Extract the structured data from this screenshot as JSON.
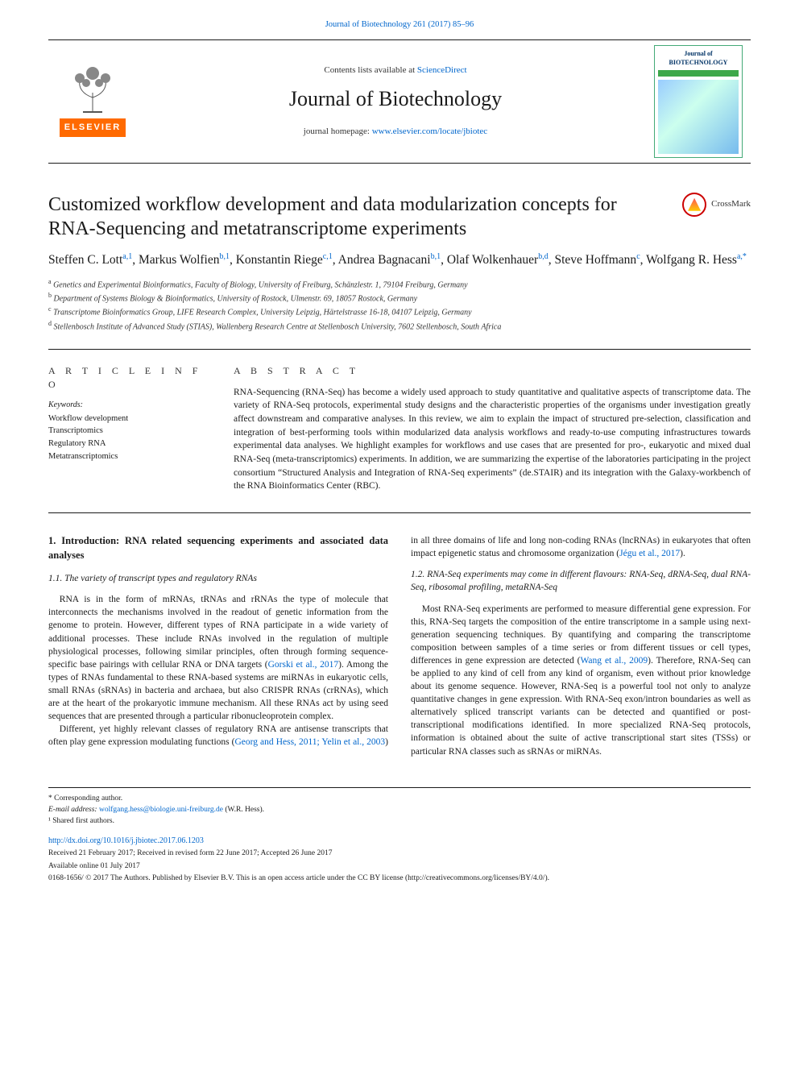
{
  "page": {
    "running_head": "Journal of Biotechnology 261 (2017) 85–96",
    "colors": {
      "link": "#0066cc",
      "elsevier_orange": "#ff6a00",
      "rule": "#1a1a1a",
      "text": "#1a1a1a",
      "cover_green": "#3da84a"
    },
    "font_body_pt": 11.5,
    "font_title_pt": 24
  },
  "masthead": {
    "contents_line_prefix": "Contents lists available at ",
    "contents_link_text": "ScienceDirect",
    "journal_name": "Journal of Biotechnology",
    "homepage_prefix": "journal homepage: ",
    "homepage_url_text": "www.elsevier.com/locate/jbiotec",
    "elsevier_label": "ELSEVIER",
    "cover_header": "Journal of\nBIOTECHNOLOGY"
  },
  "title": "Customized workflow development and data modularization concepts for RNA-Sequencing and metatranscriptome experiments",
  "crossmark_label": "CrossMark",
  "authors": [
    {
      "name": "Steffen C. Lott",
      "marks": "a,1"
    },
    {
      "name": "Markus Wolfien",
      "marks": "b,1"
    },
    {
      "name": "Konstantin Riege",
      "marks": "c,1"
    },
    {
      "name": "Andrea Bagnacani",
      "marks": "b,1"
    },
    {
      "name": "Olaf Wolkenhauer",
      "marks": "b,d"
    },
    {
      "name": "Steve Hoffmann",
      "marks": "c"
    },
    {
      "name": "Wolfgang R. Hess",
      "marks": "a,*"
    }
  ],
  "affiliations": [
    {
      "key": "a",
      "text": "Genetics and Experimental Bioinformatics, Faculty of Biology, University of Freiburg, Schänzlestr. 1, 79104 Freiburg, Germany"
    },
    {
      "key": "b",
      "text": "Department of Systems Biology & Bioinformatics, University of Rostock, Ulmenstr. 69, 18057 Rostock, Germany"
    },
    {
      "key": "c",
      "text": "Transcriptome Bioinformatics Group, LIFE Research Complex, University Leipzig, Härtelstrasse 16-18, 04107 Leipzig, Germany"
    },
    {
      "key": "d",
      "text": "Stellenbosch Institute of Advanced Study (STIAS), Wallenberg Research Centre at Stellenbosch University, 7602 Stellenbosch, South Africa"
    }
  ],
  "article_info_heading": "A R T I C L E  I N F O",
  "keywords_label": "Keywords:",
  "keywords": [
    "Workflow development",
    "Transcriptomics",
    "Regulatory RNA",
    "Metatranscriptomics"
  ],
  "abstract_heading": "A B S T R A C T",
  "abstract_text": "RNA-Sequencing (RNA-Seq) has become a widely used approach to study quantitative and qualitative aspects of transcriptome data. The variety of RNA-Seq protocols, experimental study designs and the characteristic properties of the organisms under investigation greatly affect downstream and comparative analyses. In this review, we aim to explain the impact of structured pre-selection, classification and integration of best-performing tools within modularized data analysis workflows and ready-to-use computing infrastructures towards experimental data analyses. We highlight examples for workflows and use cases that are presented for pro-, eukaryotic and mixed dual RNA-Seq (meta-transcriptomics) experiments. In addition, we are summarizing the expertise of the laboratories participating in the project consortium “Structured Analysis and Integration of RNA-Seq experiments” (de.STAIR) and its integration with the Galaxy-workbench of the RNA Bioinformatics Center (RBC).",
  "sections": {
    "intro_heading": "1. Introduction: RNA related sequencing experiments and associated data analyses",
    "s11_heading": "1.1. The variety of transcript types and regulatory RNAs",
    "s11_p1": "RNA is in the form of mRNAs, tRNAs and rRNAs the type of molecule that interconnects the mechanisms involved in the readout of genetic information from the genome to protein. However, different types of RNA participate in a wide variety of additional processes. These include RNAs involved in the regulation of multiple physiological processes, following similar principles, often through forming sequence-specific base pairings with cellular RNA or DNA targets (",
    "s11_p1_cite": "Gorski et al., 2017",
    "s11_p1_tail": "). Among the types of RNAs fundamental to these RNA-based systems are miRNAs in eukaryotic cells, small RNAs (sRNAs) in bacteria and archaea, but also CRISPR RNAs (crRNAs), which are at the heart of the prokaryotic immune mechanism. All these RNAs act by using seed sequences that are presented through a particular ribonucleoprotein complex.",
    "s11_p2_pre": "Different, yet highly relevant classes of regulatory RNA are antisense transcripts that often play gene expression modulating functions (",
    "s11_p2_cite": "Georg and Hess, 2011; Yelin et al., 2003",
    "s11_p2_mid": ") in all three domains of life and long non-coding RNAs (lncRNAs) in eukaryotes that often impact epigenetic status and chromosome organization (",
    "s11_p2_cite2": "Jégu et al., 2017",
    "s11_p2_tail": ").",
    "s12_heading": "1.2. RNA-Seq experiments may come in different flavours: RNA-Seq, dRNA-Seq, dual RNA-Seq, ribosomal profiling, metaRNA-Seq",
    "s12_p1": "Most RNA-Seq experiments are performed to measure differential gene expression. For this, RNA-Seq targets the composition of the entire transcriptome in a sample using next-generation sequencing techniques. By quantifying and comparing the transcriptome composition between samples of a time series or from different tissues or cell types, differences in gene expression are detected (",
    "s12_p1_cite": "Wang et al., 2009",
    "s12_p1_tail": "). Therefore, RNA-Seq can be applied to any kind of cell from any kind of organism, even without prior knowledge about its genome sequence. However, RNA-Seq is a powerful tool not only to analyze quantitative changes in gene expression. With RNA-Seq exon/intron boundaries as well as alternatively spliced transcript variants can be detected and quantified or post-transcriptional modifications identified. In more specialized RNA-Seq protocols, information is obtained about the suite of active transcriptional start sites (TSSs) or particular RNA classes such as sRNAs or miRNAs."
  },
  "footnotes": {
    "corresponding": "* Corresponding author.",
    "email_label": "E-mail address: ",
    "email": "wolfgang.hess@biologie.uni-freiburg.de",
    "email_who": " (W.R. Hess).",
    "shared": "¹ Shared first authors."
  },
  "pub": {
    "doi_url": "http://dx.doi.org/10.1016/j.jbiotec.2017.06.1203",
    "received": "Received 21 February 2017; Received in revised form 22 June 2017; Accepted 26 June 2017",
    "online": "Available online 01 July 2017",
    "copyright": "0168-1656/ © 2017 The Authors. Published by Elsevier B.V. This is an open access article under the CC BY license (http://creativecommons.org/licenses/BY/4.0/)."
  }
}
